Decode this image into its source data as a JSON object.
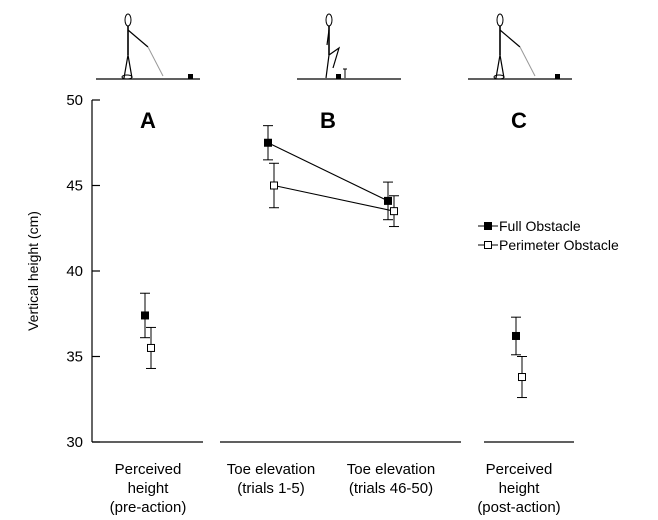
{
  "colors": {
    "ink": "#000000",
    "open_fill": "#ffffff",
    "cane": "#999999"
  },
  "chart_data": {
    "type": "scatter",
    "ylabel": "Vertical height (cm)",
    "xlabel": "",
    "ylim": [
      30,
      50
    ],
    "yticks": [
      30,
      35,
      40,
      45,
      50
    ],
    "error_bars": true,
    "legend_position": "right",
    "legend": [
      "Full Obstacle",
      "Perimeter Obstacle"
    ],
    "panels": [
      {
        "label": "A",
        "categories": [
          [
            "Perceived",
            "height",
            "(pre-action)"
          ]
        ]
      },
      {
        "label": "B",
        "categories": [
          [
            "Toe elevation",
            "(trials 1-5)"
          ],
          [
            "Toe elevation",
            "(trials 46-50)"
          ]
        ]
      },
      {
        "label": "C",
        "categories": [
          [
            "Perceived",
            "height",
            "(post-action)"
          ]
        ]
      }
    ],
    "series": [
      {
        "name": "Full Obstacle",
        "marker": "filled-square",
        "points": [
          {
            "panel": 0,
            "cat": 0,
            "y": 37.4,
            "err": 1.3
          },
          {
            "panel": 1,
            "cat": 0,
            "y": 47.5,
            "err": 1.0
          },
          {
            "panel": 1,
            "cat": 1,
            "y": 44.1,
            "err": 1.1
          },
          {
            "panel": 2,
            "cat": 0,
            "y": 36.2,
            "err": 1.1
          }
        ]
      },
      {
        "name": "Perimeter Obstacle",
        "marker": "open-square",
        "points": [
          {
            "panel": 0,
            "cat": 0,
            "y": 35.5,
            "err": 1.2
          },
          {
            "panel": 1,
            "cat": 0,
            "y": 45.0,
            "err": 1.3
          },
          {
            "panel": 1,
            "cat": 1,
            "y": 43.5,
            "err": 0.9
          },
          {
            "panel": 2,
            "cat": 0,
            "y": 33.8,
            "err": 1.2
          }
        ]
      }
    ]
  }
}
